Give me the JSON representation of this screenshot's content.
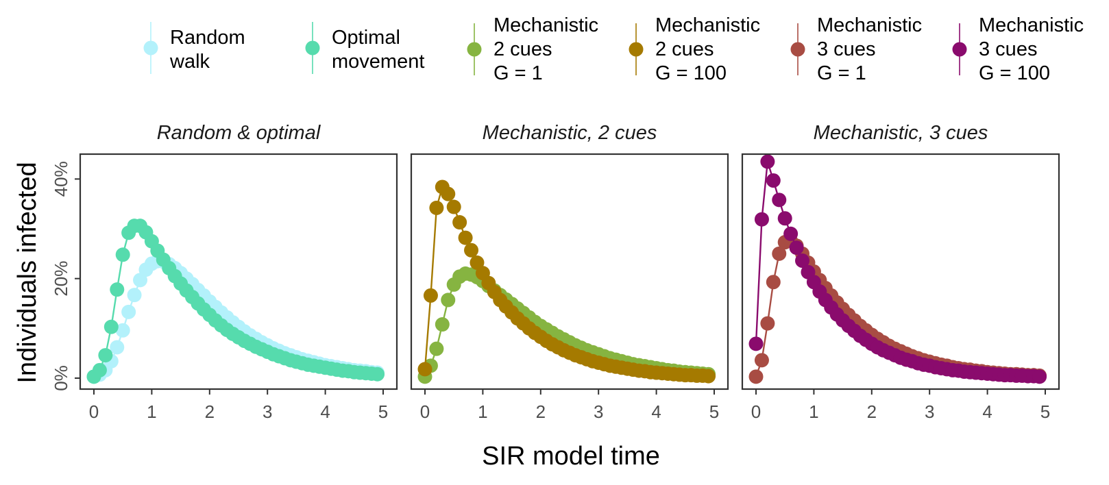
{
  "chart_data": {
    "type": "line",
    "xlabel": "SIR model time",
    "ylabel": "Individuals infected",
    "xlim": [
      0,
      5
    ],
    "ylim": [
      0,
      45
    ],
    "x_ticks": [
      "0",
      "1",
      "2",
      "3",
      "4",
      "5"
    ],
    "y_ticks": [
      "0%",
      "20%",
      "40%"
    ],
    "y_tick_values": [
      0,
      20,
      40
    ],
    "grid": false,
    "legend_position": "top",
    "legend": [
      {
        "key": "random",
        "label": [
          "Random",
          "walk"
        ],
        "color": "#b3f1fb"
      },
      {
        "key": "optimal",
        "label": [
          "Optimal",
          "movement"
        ],
        "color": "#56dbad"
      },
      {
        "key": "m2g1",
        "label": [
          "Mechanistic",
          "2 cues",
          "G = 1"
        ],
        "color": "#86b441"
      },
      {
        "key": "m2g100",
        "label": [
          "Mechanistic",
          "2 cues",
          "G = 100"
        ],
        "color": "#a57a00"
      },
      {
        "key": "m3g1",
        "label": [
          "Mechanistic",
          "3 cues",
          "G = 1"
        ],
        "color": "#a84c43"
      },
      {
        "key": "m3g100",
        "label": [
          "Mechanistic",
          "3 cues",
          "G = 100"
        ],
        "color": "#8a0b6d"
      }
    ],
    "panels": [
      {
        "title": "Random & optimal",
        "series": [
          "random",
          "optimal"
        ]
      },
      {
        "title": "Mechanistic, 2 cues",
        "series": [
          "m2g1",
          "m2g100"
        ]
      },
      {
        "title": "Mechanistic, 3 cues",
        "series": [
          "m3g1",
          "m3g100"
        ]
      }
    ],
    "x": [
      0,
      0.1,
      0.2,
      0.3,
      0.4,
      0.5,
      0.6,
      0.7,
      0.8,
      0.9,
      1,
      1.1,
      1.2,
      1.3,
      1.4,
      1.5,
      1.6,
      1.7,
      1.8,
      1.9,
      2,
      2.1,
      2.2,
      2.3,
      2.4,
      2.5,
      2.6,
      2.7,
      2.8,
      2.9,
      3,
      3.1,
      3.2,
      3.3,
      3.4,
      3.5,
      3.6,
      3.7,
      3.8,
      3.9,
      4,
      4.1,
      4.2,
      4.3,
      4.4,
      4.5,
      4.6,
      4.7,
      4.8,
      4.9
    ],
    "series": [
      {
        "key": "random",
        "values": [
          0.3,
          0.7,
          1.6,
          3.4,
          6.2,
          9.6,
          13.3,
          16.7,
          19.7,
          21.8,
          23.0,
          23.5,
          23.4,
          22.9,
          22.1,
          21.1,
          20.0,
          18.9,
          17.7,
          16.6,
          15.4,
          14.3,
          13.2,
          12.2,
          11.2,
          10.3,
          9.4,
          8.6,
          7.9,
          7.2,
          6.6,
          6.0,
          5.5,
          5.0,
          4.6,
          4.2,
          3.8,
          3.5,
          3.2,
          2.9,
          2.6,
          2.4,
          2.2,
          2.0,
          1.8,
          1.6,
          1.5,
          1.4,
          1.2,
          1.1
        ]
      },
      {
        "key": "optimal",
        "values": [
          0.3,
          1.6,
          4.6,
          10.3,
          17.8,
          24.8,
          29.2,
          30.6,
          30.6,
          29.3,
          27.5,
          25.6,
          23.8,
          22.1,
          20.5,
          19.0,
          17.6,
          16.3,
          15.0,
          13.8,
          12.7,
          11.6,
          10.6,
          9.7,
          8.9,
          8.2,
          7.5,
          6.9,
          6.3,
          5.8,
          5.3,
          4.8,
          4.4,
          4.0,
          3.6,
          3.3,
          3.0,
          2.7,
          2.5,
          2.3,
          2.1,
          1.9,
          1.7,
          1.5,
          1.4,
          1.2,
          1.1,
          1.0,
          0.9,
          0.8
        ]
      },
      {
        "key": "m2g1",
        "values": [
          0.3,
          2.5,
          5.9,
          10.8,
          15.7,
          18.8,
          20.4,
          21.0,
          20.8,
          20.3,
          19.5,
          18.5,
          17.6,
          16.7,
          15.8,
          14.9,
          14.0,
          13.1,
          12.2,
          11.3,
          10.5,
          9.8,
          9.1,
          8.4,
          7.8,
          7.2,
          6.6,
          6.1,
          5.6,
          5.2,
          4.8,
          4.4,
          4.0,
          3.7,
          3.4,
          3.1,
          2.8,
          2.6,
          2.4,
          2.2,
          2.0,
          1.8,
          1.6,
          1.5,
          1.3,
          1.2,
          1.1,
          1.0,
          0.9,
          0.8
        ]
      },
      {
        "key": "m2g100",
        "values": [
          1.8,
          16.6,
          34.2,
          38.4,
          37.0,
          34.4,
          31.3,
          28.2,
          25.7,
          23.2,
          21.1,
          19.1,
          17.3,
          15.7,
          14.4,
          13.2,
          12.0,
          11.0,
          10.0,
          9.1,
          8.3,
          7.5,
          6.8,
          6.2,
          5.6,
          5.1,
          4.6,
          4.2,
          3.8,
          3.4,
          3.1,
          2.8,
          2.5,
          2.3,
          2.1,
          1.9,
          1.7,
          1.5,
          1.4,
          1.2,
          1.1,
          1.0,
          0.9,
          0.8,
          0.7,
          0.6,
          0.6,
          0.5,
          0.5,
          0.4
        ]
      },
      {
        "key": "m3g1",
        "values": [
          0.3,
          3.6,
          11.0,
          19.3,
          25.0,
          27.3,
          27.6,
          26.6,
          25.0,
          23.2,
          21.4,
          19.7,
          18.1,
          16.6,
          15.2,
          13.9,
          12.7,
          11.6,
          10.5,
          9.6,
          8.7,
          7.9,
          7.2,
          6.5,
          5.9,
          5.4,
          4.9,
          4.4,
          4.0,
          3.6,
          3.3,
          3.0,
          2.7,
          2.5,
          2.2,
          2.0,
          1.8,
          1.7,
          1.5,
          1.4,
          1.2,
          1.1,
          1.0,
          0.9,
          0.8,
          0.8,
          0.7,
          0.6,
          0.6,
          0.5
        ]
      },
      {
        "key": "m3g100",
        "values": [
          6.9,
          31.9,
          43.5,
          39.7,
          35.8,
          32.1,
          29.0,
          26.2,
          23.6,
          21.3,
          19.3,
          17.4,
          15.7,
          14.2,
          12.8,
          11.6,
          10.5,
          9.5,
          8.5,
          7.7,
          6.9,
          6.2,
          5.6,
          5.1,
          4.6,
          4.1,
          3.7,
          3.4,
          3.0,
          2.7,
          2.5,
          2.2,
          2.0,
          1.8,
          1.6,
          1.5,
          1.3,
          1.2,
          1.1,
          1.0,
          0.9,
          0.8,
          0.7,
          0.6,
          0.6,
          0.5,
          0.5,
          0.4,
          0.4,
          0.3
        ]
      }
    ]
  }
}
